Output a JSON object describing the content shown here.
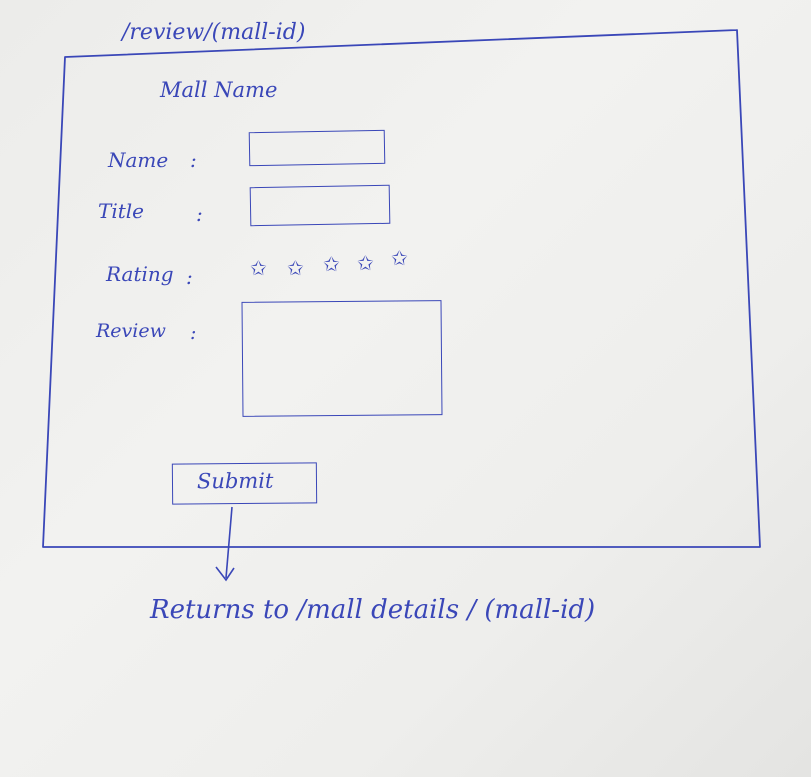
{
  "route": {
    "path": "/review/(mall-id)"
  },
  "form": {
    "title": "Mall Name",
    "name_label": "Name",
    "title_label": "Title",
    "rating_label": "Rating",
    "review_label": "Review",
    "colon": ":",
    "rating": {
      "stars": [
        "✩",
        "✩",
        "✩",
        "✩",
        "✩"
      ]
    },
    "submit_label": "Submit"
  },
  "annotation": {
    "redirect_text": "Returns to /mall details / (mall-id)"
  },
  "colors": {
    "ink": "#3a47b8",
    "paper": "#efefed"
  }
}
